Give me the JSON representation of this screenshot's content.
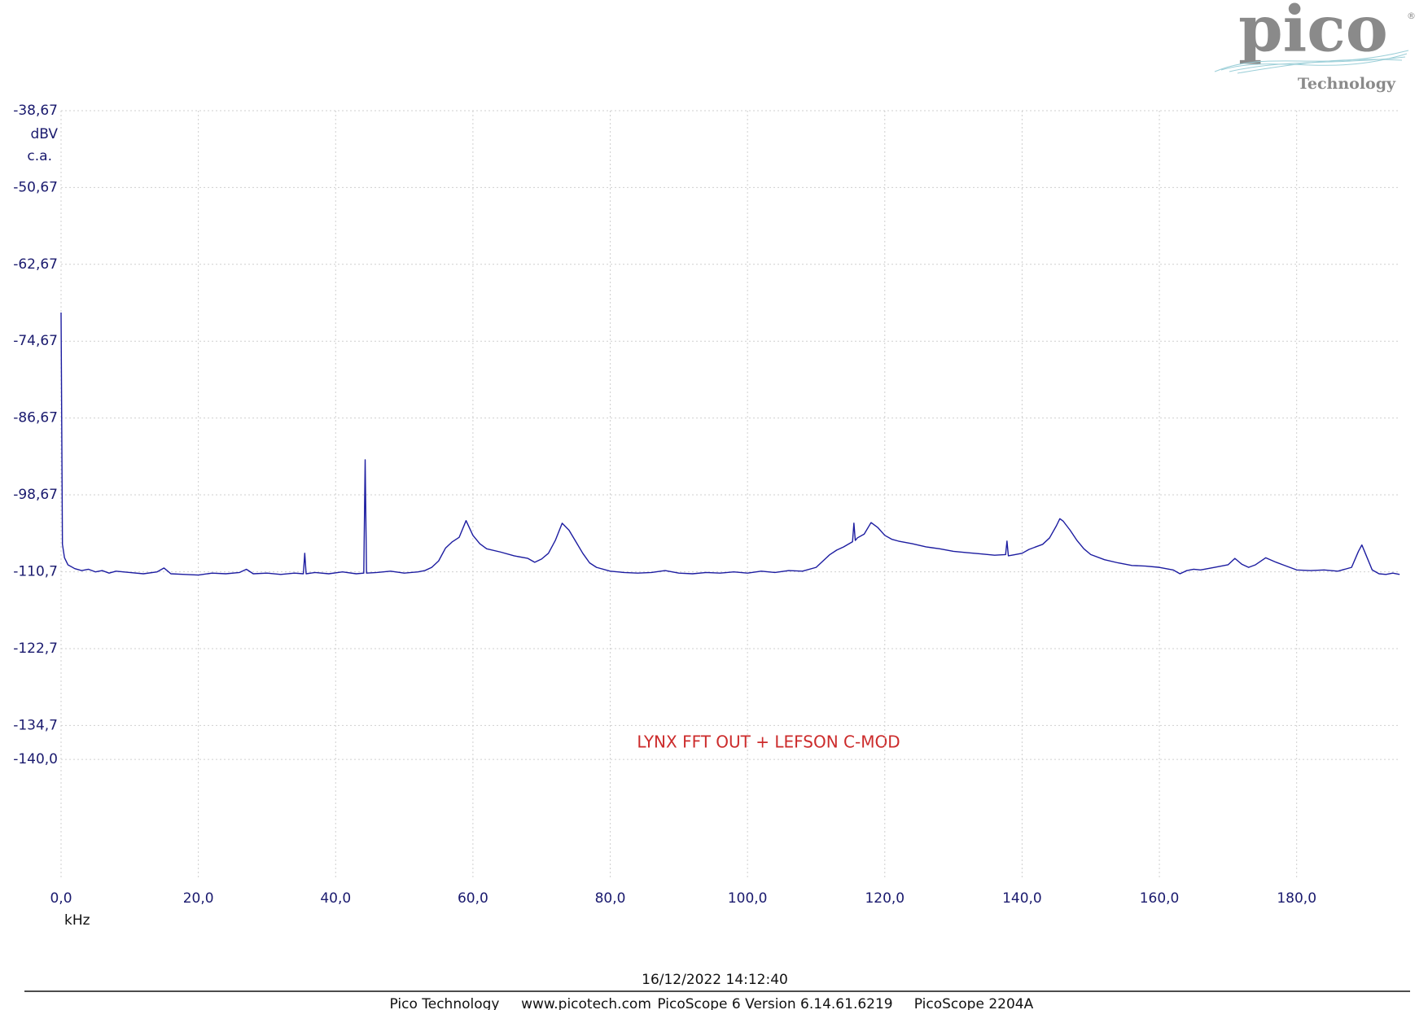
{
  "chart_data": {
    "type": "line",
    "y_unit": "dBV",
    "y_coupling": "c.a.",
    "x_unit": "kHz",
    "annotation": "LYNX FFT OUT + LEFSON C-MOD",
    "grid": true,
    "xlim": [
      0,
      195.1
    ],
    "ylim": [
      -158.67,
      -38.67
    ],
    "xticks": [
      {
        "value": 0,
        "label": "0,0"
      },
      {
        "value": 20,
        "label": "20,0"
      },
      {
        "value": 40,
        "label": "40,0"
      },
      {
        "value": 60,
        "label": "60,0"
      },
      {
        "value": 80,
        "label": "80,0"
      },
      {
        "value": 100,
        "label": "100,0"
      },
      {
        "value": 120,
        "label": "120,0"
      },
      {
        "value": 140,
        "label": "140,0"
      },
      {
        "value": 160,
        "label": "160,0"
      },
      {
        "value": 180,
        "label": "180,0"
      }
    ],
    "yticks": [
      {
        "value": -38.67,
        "label": "-38,67"
      },
      {
        "value": -50.67,
        "label": "-50,67"
      },
      {
        "value": -62.67,
        "label": "-62,67"
      },
      {
        "value": -74.67,
        "label": "-74,67"
      },
      {
        "value": -86.67,
        "label": "-86,67"
      },
      {
        "value": -98.67,
        "label": "-98,67"
      },
      {
        "value": -110.7,
        "label": "-110,7"
      },
      {
        "value": -122.7,
        "label": "-122,7"
      },
      {
        "value": -134.7,
        "label": "-134,7"
      },
      {
        "value": -140.0,
        "label": "-140,0"
      }
    ],
    "series": [
      {
        "color": "#1c1ca0",
        "x": [
          0,
          0.2,
          0.5,
          1,
          2,
          3,
          4,
          5,
          6,
          7,
          8,
          10,
          12,
          14,
          15,
          16,
          18,
          20,
          22,
          24,
          26,
          27,
          28,
          30,
          32,
          34,
          35.3,
          35.5,
          35.7,
          37,
          39,
          41,
          43,
          44.1,
          44.3,
          44.5,
          46,
          48,
          50,
          52,
          53,
          54,
          55,
          56,
          57,
          58,
          59,
          60,
          61,
          62,
          64,
          66,
          68,
          69,
          70,
          71,
          72,
          73,
          74,
          75,
          76,
          77,
          78,
          80,
          82,
          84,
          86,
          88,
          90,
          92,
          94,
          96,
          98,
          100,
          102,
          104,
          106,
          108,
          110,
          111,
          112,
          113,
          114,
          115.3,
          115.5,
          115.7,
          116,
          117,
          118,
          119,
          120,
          121,
          122,
          124,
          126,
          128,
          130,
          132,
          134,
          136,
          137.6,
          137.8,
          138,
          139,
          140,
          141,
          142,
          143,
          144,
          145,
          145.5,
          146,
          147,
          148,
          149,
          150,
          152,
          154,
          156,
          158,
          160,
          162,
          163,
          164,
          165,
          166,
          168,
          170,
          171,
          172,
          173,
          174,
          175.5,
          177,
          178,
          180,
          182,
          184,
          186,
          188,
          189,
          189.5,
          190,
          191,
          192,
          193,
          194,
          195
        ],
        "values": [
          -70.2,
          -106.4,
          -108.5,
          -109.6,
          -110.2,
          -110.5,
          -110.3,
          -110.7,
          -110.5,
          -110.9,
          -110.6,
          -110.8,
          -111.0,
          -110.7,
          -110.1,
          -111.0,
          -111.1,
          -111.2,
          -110.9,
          -111.0,
          -110.8,
          -110.3,
          -111.0,
          -110.9,
          -111.1,
          -110.9,
          -111.0,
          -107.8,
          -111.0,
          -110.8,
          -111.0,
          -110.7,
          -111.0,
          -110.9,
          -93.2,
          -110.9,
          -110.8,
          -110.6,
          -110.9,
          -110.7,
          -110.5,
          -110.0,
          -109.0,
          -107.0,
          -106.0,
          -105.3,
          -102.7,
          -105.0,
          -106.3,
          -107.1,
          -107.6,
          -108.2,
          -108.6,
          -109.2,
          -108.7,
          -107.8,
          -105.8,
          -103.1,
          -104.2,
          -106.0,
          -107.8,
          -109.3,
          -110.0,
          -110.6,
          -110.8,
          -110.9,
          -110.8,
          -110.5,
          -110.9,
          -111.0,
          -110.8,
          -110.9,
          -110.7,
          -110.9,
          -110.6,
          -110.8,
          -110.5,
          -110.6,
          -110.0,
          -109.0,
          -108.0,
          -107.3,
          -106.8,
          -106.0,
          -103.1,
          -105.8,
          -105.4,
          -104.8,
          -103.0,
          -103.8,
          -105.0,
          -105.6,
          -105.9,
          -106.3,
          -106.8,
          -107.1,
          -107.5,
          -107.7,
          -107.9,
          -108.1,
          -108.0,
          -105.9,
          -108.2,
          -108.0,
          -107.8,
          -107.2,
          -106.8,
          -106.4,
          -105.4,
          -103.5,
          -102.4,
          -102.8,
          -104.2,
          -105.8,
          -107.1,
          -108.0,
          -108.8,
          -109.3,
          -109.7,
          -109.8,
          -110.0,
          -110.4,
          -111.0,
          -110.5,
          -110.3,
          -110.4,
          -110.0,
          -109.6,
          -108.6,
          -109.5,
          -110.0,
          -109.6,
          -108.5,
          -109.2,
          -109.6,
          -110.4,
          -110.5,
          -110.4,
          -110.6,
          -110.0,
          -107.5,
          -106.5,
          -107.8,
          -110.4,
          -111.0,
          -111.1,
          -110.9,
          -111.1
        ]
      }
    ]
  },
  "logo": {
    "name": "pico",
    "sub": "Technology",
    "mark": "®"
  },
  "timestamp": "16/12/2022 14:12:40",
  "footer": [
    "Pico Technology",
    "www.picotech.com",
    "PicoScope 6 Version 6.14.61.6219",
    "PicoScope 2204A"
  ]
}
